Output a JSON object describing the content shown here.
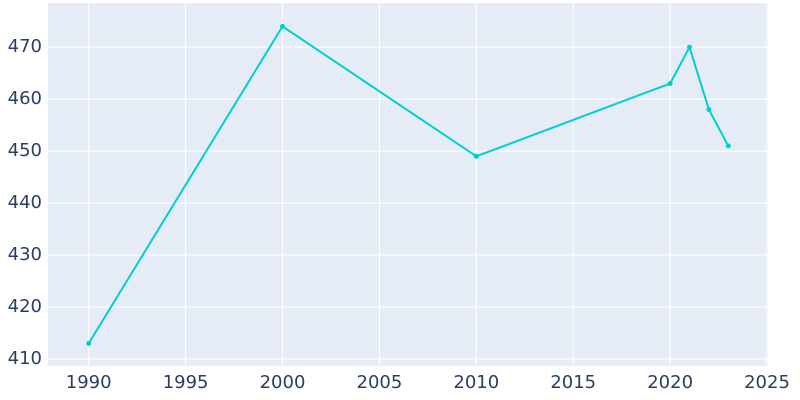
{
  "chart_data": {
    "type": "line",
    "x": [
      1990,
      2000,
      2010,
      2020,
      2021,
      2022,
      2023
    ],
    "series": [
      {
        "color": "#00cfcf",
        "values": [
          413,
          474,
          449,
          463,
          470,
          458,
          451
        ]
      }
    ],
    "xlim": [
      1987.9,
      2025.05
    ],
    "xticks": [
      1990,
      1995,
      2000,
      2005,
      2010,
      2015,
      2020,
      2025
    ],
    "ylim": [
      408.65,
      478.5
    ],
    "yticks": [
      410,
      420,
      430,
      440,
      450,
      460,
      470
    ],
    "grid": true
  }
}
